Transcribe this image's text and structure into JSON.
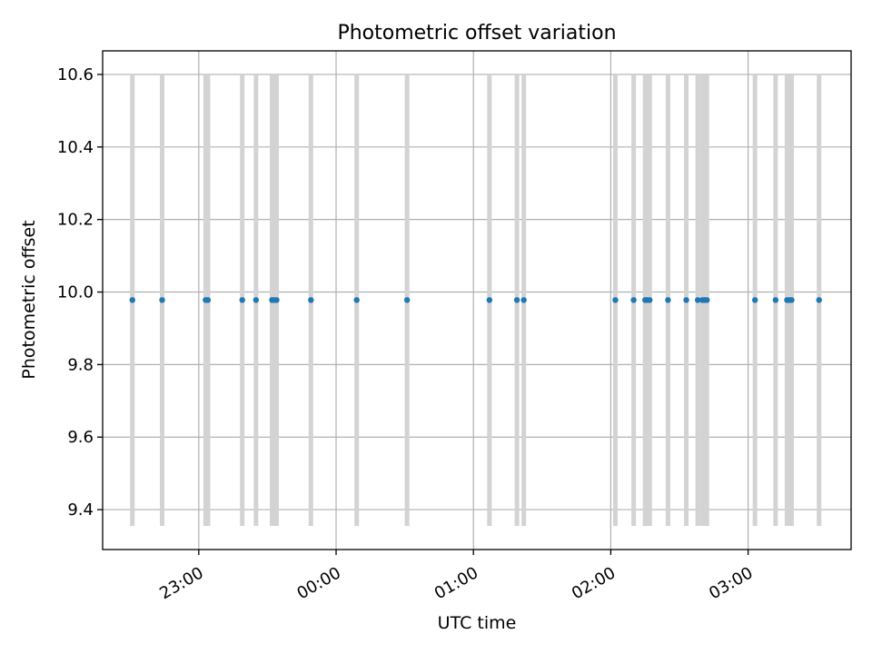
{
  "chart_data": {
    "type": "scatter",
    "title": "Photometric offset variation",
    "xlabel": "UTC time",
    "ylabel": "Photometric offset",
    "x_kind": "time",
    "xlim": [
      "22:18",
      "03:45"
    ],
    "ylim": [
      9.29,
      10.665
    ],
    "x_ticks": [
      "23:00",
      "00:00",
      "01:00",
      "02:00",
      "03:00"
    ],
    "y_ticks": [
      9.4,
      9.6,
      9.8,
      10.0,
      10.2,
      10.4,
      10.6
    ],
    "grid": true,
    "marker_color": "#1f77b4",
    "errorbar_color": "#d3d3d3",
    "series": [
      {
        "x": [
          "22:31",
          "22:44",
          "23:03",
          "23:04",
          "23:19",
          "23:25",
          "23:32",
          "23:33",
          "23:34",
          "23:49",
          "00:09",
          "00:31",
          "01:07",
          "01:19",
          "01:22",
          "02:02",
          "02:10",
          "02:15",
          "02:16",
          "02:17",
          "02:25",
          "02:33",
          "02:38",
          "02:40",
          "02:41",
          "02:42",
          "03:03",
          "03:12",
          "03:17",
          "03:18",
          "03:19",
          "03:31"
        ],
        "y": [
          9.978,
          9.978,
          9.978,
          9.978,
          9.978,
          9.978,
          9.978,
          9.978,
          9.978,
          9.978,
          9.978,
          9.978,
          9.978,
          9.978,
          9.978,
          9.978,
          9.978,
          9.978,
          9.978,
          9.978,
          9.978,
          9.978,
          9.978,
          9.978,
          9.978,
          9.978,
          9.978,
          9.978,
          9.978,
          9.978,
          9.978,
          9.978
        ],
        "yerr_low": 9.355,
        "yerr_high": 10.6
      }
    ]
  }
}
